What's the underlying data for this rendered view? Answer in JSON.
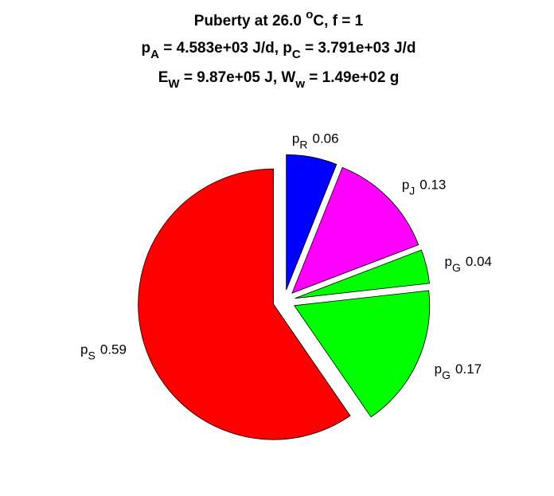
{
  "chart_data": {
    "type": "pie",
    "title": [
      [
        {
          "text": "Puberty at 26.0 "
        },
        {
          "text": "o",
          "shift": "sup"
        },
        {
          "text": "C, f = 1"
        }
      ],
      [
        {
          "text": "p"
        },
        {
          "text": "A",
          "shift": "sub"
        },
        {
          "text": " = 4.583e+03 J/d,  p"
        },
        {
          "text": "C",
          "shift": "sub"
        },
        {
          "text": " = 3.791e+03 J/d"
        }
      ],
      [
        {
          "text": "E"
        },
        {
          "text": "W",
          "shift": "sub"
        },
        {
          "text": " = 9.87e+05 J, W"
        },
        {
          "text": "w",
          "shift": "sub"
        },
        {
          "text": " = 1.49e+02 g"
        }
      ]
    ],
    "categories": [
      {
        "text": "p",
        "sub": "R"
      },
      {
        "text": "p",
        "sub": "J"
      },
      {
        "text": "p",
        "sub": "G"
      },
      {
        "text": "p",
        "sub": "G"
      },
      {
        "text": "p",
        "sub": "S"
      }
    ],
    "values": [
      0.06,
      0.13,
      0.04,
      0.17,
      0.59
    ],
    "colors": [
      "#0000ff",
      "#ff00ff",
      "#00ff00",
      "#00ff00",
      "#ff0000"
    ],
    "explode": true
  }
}
